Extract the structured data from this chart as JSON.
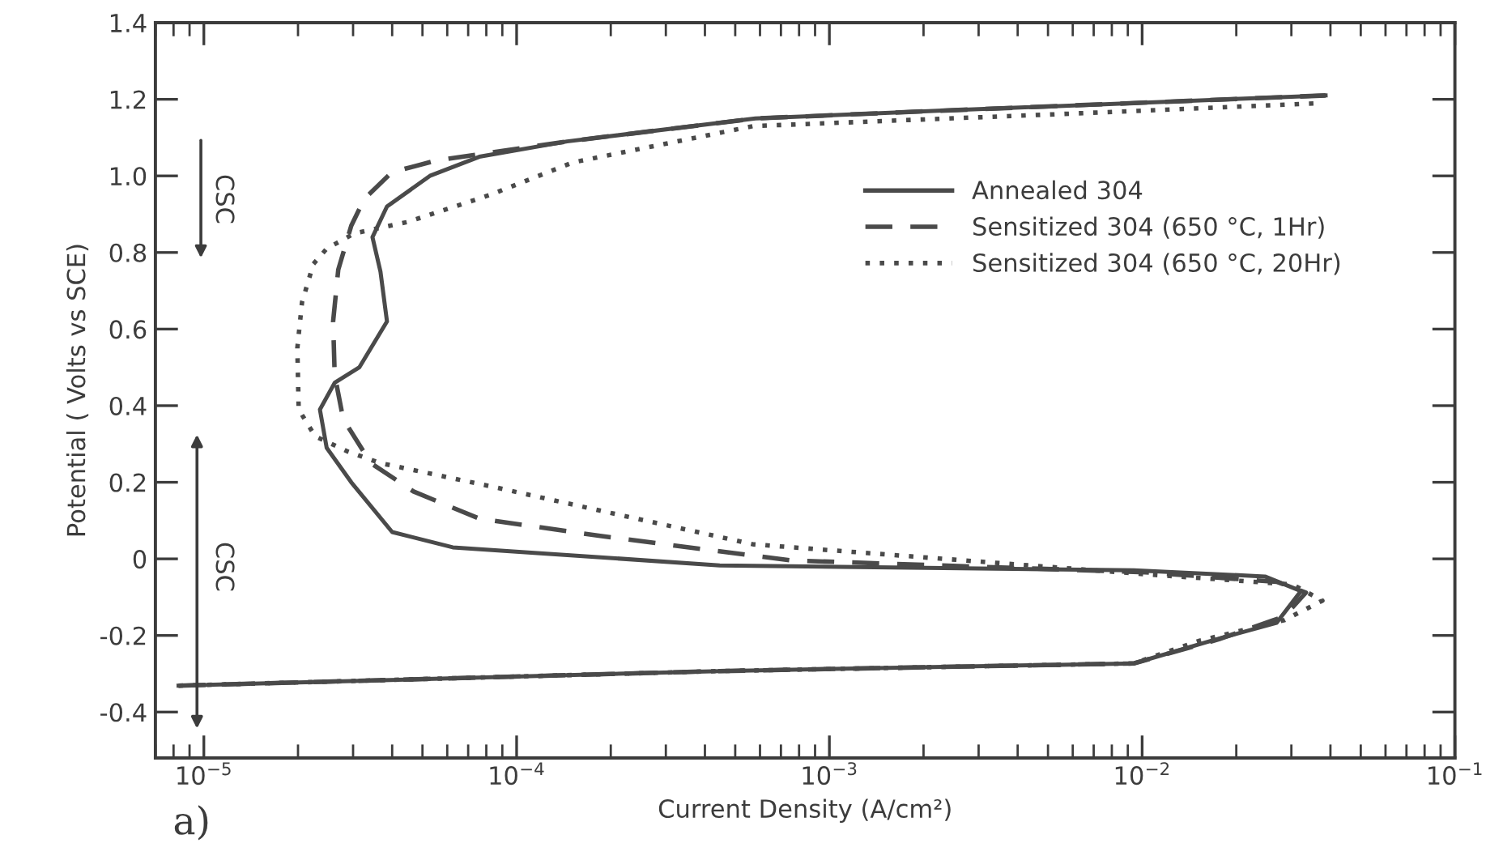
{
  "chart_data": {
    "type": "line",
    "xlabel": "Current Density (A/cm²)",
    "ylabel": "Potential ( Volts vs SCE)",
    "log": "x",
    "xlim": [
      7e-06,
      0.1
    ],
    "xticks": [
      {
        "value": 1e-05,
        "label": "10$^{−5}$"
      },
      {
        "value": 0.0001,
        "label": "10$^{−4}$"
      },
      {
        "value": 0.001,
        "label": "10$^{−3}$"
      },
      {
        "value": 0.01,
        "label": "10$^{−2}$"
      },
      {
        "value": 0.1,
        "label": "10$^{−1}$"
      }
    ],
    "ylim": [
      -0.52,
      1.4
    ],
    "yticks": [
      {
        "value": -0.4,
        "label": "-0.4"
      },
      {
        "value": -0.2,
        "label": "-0.2"
      },
      0,
      {
        "value": 0.2,
        "label": "0.2"
      },
      {
        "value": 0.4,
        "label": "0.4"
      },
      {
        "value": 0.6,
        "label": "0.6"
      },
      {
        "value": 0.8,
        "label": "0.8"
      },
      {
        "value": 1.0,
        "label": "1.0"
      },
      {
        "value": 1.2,
        "label": "1.2"
      },
      {
        "value": 1.4,
        "label": "1.4"
      }
    ],
    "grid": false,
    "legend": "right",
    "marker": "none",
    "series": [
      {
        "name": "Annealed 304",
        "color": "#4a4a4a",
        "line_style": "solid",
        "x": [
          8.3e-06,
          0.000446,
          0.0094,
          0.0166,
          0.0269,
          0.0322,
          0.0247,
          0.0094,
          0.000446,
          6.25e-05,
          4e-05,
          2.96e-05,
          2.47e-05,
          2.35e-05,
          2.62e-05,
          3.14e-05,
          3.85e-05,
          3.67e-05,
          3.46e-05,
          3.85e-05,
          5.28e-05,
          7.6e-05,
          0.000145,
          0.00058,
          0.00222,
          0.0386
        ],
        "values": [
          -0.331,
          -0.293,
          -0.273,
          -0.214,
          -0.167,
          -0.084,
          -0.046,
          -0.03,
          -0.017,
          0.03,
          0.07,
          0.2,
          0.29,
          0.39,
          0.46,
          0.5,
          0.62,
          0.75,
          0.84,
          0.92,
          1.0,
          1.05,
          1.09,
          1.15,
          1.17,
          1.21
        ]
      },
      {
        "name": "Sensitized 304 (650 °C, 1Hr)",
        "color": "#4a4a4a",
        "line_style": "dashed",
        "x": [
          8.3e-06,
          0.000446,
          0.0094,
          0.0176,
          0.0285,
          0.0334,
          0.0269,
          0.0102,
          0.00075,
          0.000185,
          7.6e-05,
          4.68e-05,
          3.42e-05,
          2.79e-05,
          2.62e-05,
          2.59e-05,
          2.69e-05,
          2.96e-05,
          3.26e-05,
          4e-05,
          5.53e-05,
          0.000145,
          0.00058,
          0.00222,
          0.0386
        ],
        "values": [
          -0.331,
          -0.293,
          -0.273,
          -0.21,
          -0.15,
          -0.088,
          -0.06,
          -0.035,
          -0.004,
          0.06,
          0.105,
          0.176,
          0.25,
          0.365,
          0.48,
          0.62,
          0.755,
          0.87,
          0.94,
          1.01,
          1.04,
          1.09,
          1.15,
          1.17,
          1.21
        ]
      },
      {
        "name": "Sensitized 304 (650 °C, 20Hr)",
        "color": "#4a4a4a",
        "line_style": "dotted",
        "x": [
          8.3e-06,
          0.000446,
          0.0094,
          0.0152,
          0.0285,
          0.0377,
          0.0303,
          0.0102,
          0.00057,
          0.000185,
          8.2e-05,
          3.67e-05,
          2.89e-05,
          2.27e-05,
          2.01e-05,
          1.99e-05,
          2.06e-05,
          2.24e-05,
          2.47e-05,
          3.03e-05,
          4.5e-05,
          8.2e-05,
          0.000151,
          0.00057,
          0.00497,
          0.0372
        ],
        "values": [
          -0.331,
          -0.293,
          -0.273,
          -0.214,
          -0.16,
          -0.109,
          -0.067,
          -0.04,
          0.038,
          0.126,
          0.19,
          0.25,
          0.28,
          0.32,
          0.39,
          0.55,
          0.67,
          0.77,
          0.81,
          0.85,
          0.88,
          0.95,
          1.035,
          1.13,
          1.16,
          1.19
        ]
      }
    ],
    "annotations": [
      "CSC",
      "CSC",
      "a)"
    ]
  }
}
